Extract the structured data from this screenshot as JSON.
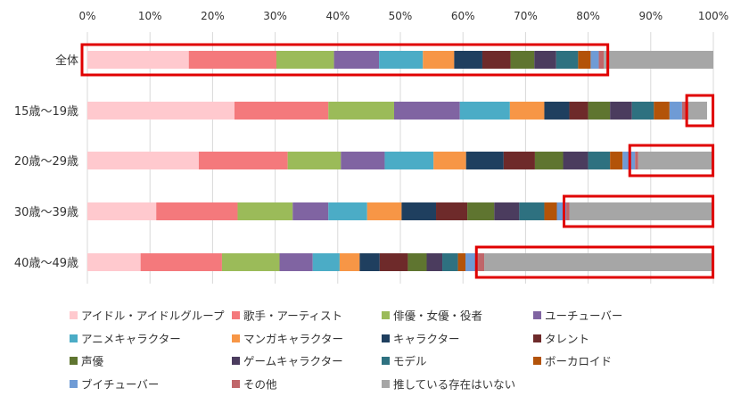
{
  "chart_data": {
    "type": "bar",
    "orientation": "horizontal",
    "stacked": true,
    "percent_axis": true,
    "xlim": [
      0,
      100
    ],
    "x_ticks": [
      "0%",
      "10%",
      "20%",
      "30%",
      "40%",
      "50%",
      "60%",
      "70%",
      "80%",
      "90%",
      "100%"
    ],
    "gridlines": "vertical",
    "legend_position": "bottom",
    "categories": [
      "全体",
      "15歳～19歳",
      "20歳～29歳",
      "30歳～39歳",
      "40歳～49歳"
    ],
    "series": [
      {
        "name": "アイドル・アイドルグループ",
        "color": "#FFC9CE",
        "values": [
          16.2,
          23.5,
          17.8,
          11.0,
          8.5
        ]
      },
      {
        "name": "歌手・アーティスト",
        "color": "#F4797C",
        "values": [
          14.0,
          15.0,
          14.2,
          13.0,
          13.0
        ]
      },
      {
        "name": "俳優・女優・役者",
        "color": "#9BBB59",
        "values": [
          9.2,
          10.5,
          8.5,
          8.8,
          9.2
        ]
      },
      {
        "name": "ユーチューバー",
        "color": "#8064A2",
        "values": [
          7.2,
          10.5,
          7.0,
          5.7,
          5.3
        ]
      },
      {
        "name": "アニメキャラクター",
        "color": "#4BACC6",
        "values": [
          7.0,
          8.0,
          7.8,
          6.2,
          4.3
        ]
      },
      {
        "name": "マンガキャラクター",
        "color": "#F79646",
        "values": [
          5.0,
          5.5,
          5.2,
          5.5,
          3.2
        ]
      },
      {
        "name": "キャラクター",
        "color": "#1F3F5F",
        "values": [
          4.5,
          4.0,
          6.0,
          5.5,
          3.2
        ]
      },
      {
        "name": "タレント",
        "color": "#6E2A2A",
        "values": [
          4.5,
          3.0,
          5.0,
          5.0,
          4.5
        ]
      },
      {
        "name": "声優",
        "color": "#5F7530",
        "values": [
          3.8,
          3.5,
          4.5,
          4.3,
          3.0
        ]
      },
      {
        "name": "ゲームキャラクター",
        "color": "#4B3C5E",
        "values": [
          3.5,
          3.5,
          4.0,
          4.0,
          2.5
        ]
      },
      {
        "name": "モデル",
        "color": "#2E7180",
        "values": [
          3.5,
          3.5,
          3.5,
          4.0,
          2.5
        ]
      },
      {
        "name": "ボーカロイド",
        "color": "#B35309",
        "values": [
          2.0,
          2.5,
          2.0,
          2.0,
          1.2
        ]
      },
      {
        "name": "ブイチューバー",
        "color": "#6F9BD5",
        "values": [
          1.3,
          2.0,
          2.0,
          1.5,
          2.0
        ]
      },
      {
        "name": "その他",
        "color": "#C0666A",
        "values": [
          0.8,
          1.0,
          0.5,
          0.5,
          1.0
        ]
      },
      {
        "name": "推している存在はいない",
        "color": "#A6A6A6",
        "values": [
          17.5,
          3.0,
          12.0,
          23.0,
          36.6
        ]
      }
    ],
    "highlight_boxes": [
      {
        "category": "全体",
        "from": 0,
        "to": 83.0,
        "color": "#E00000"
      },
      {
        "category": "15歳～19歳",
        "from": 96.6,
        "to": 99.8,
        "color": "#E00000"
      },
      {
        "category": "20歳～29歳",
        "from": 87.5,
        "to": 99.8,
        "color": "#E00000"
      },
      {
        "category": "30歳～39歳",
        "from": 77.0,
        "to": 99.8,
        "color": "#E00000"
      },
      {
        "category": "40歳～49歳",
        "from": 63.0,
        "to": 99.8,
        "color": "#E00000"
      }
    ]
  }
}
